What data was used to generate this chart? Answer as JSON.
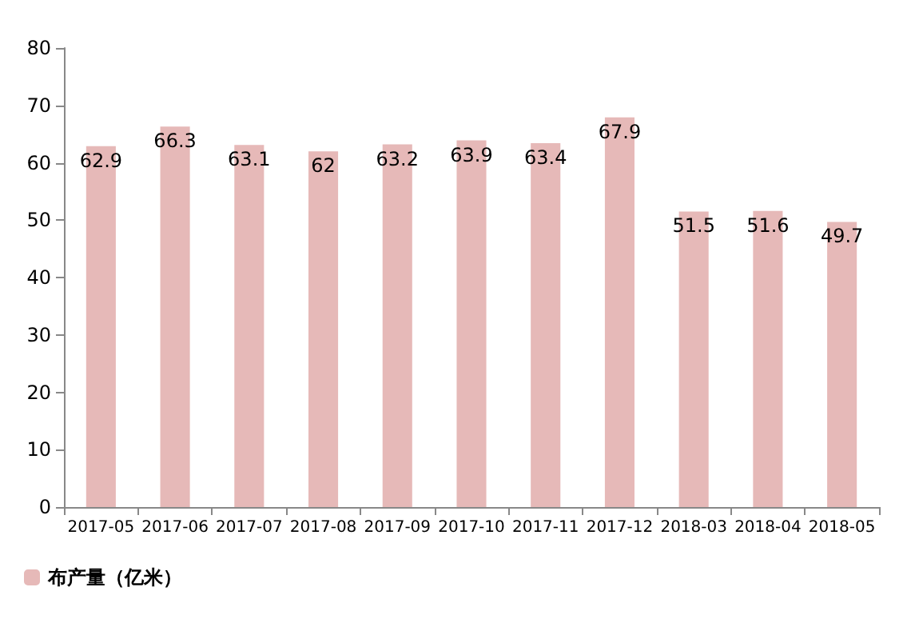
{
  "chart_data": {
    "type": "bar",
    "categories": [
      "2017-05",
      "2017-06",
      "2017-07",
      "2017-08",
      "2017-09",
      "2017-10",
      "2017-11",
      "2017-12",
      "2018-03",
      "2018-04",
      "2018-05"
    ],
    "series": [
      {
        "name": "布产量（亿米）",
        "color": "#e6b9b8",
        "values": [
          62.9,
          66.3,
          63.1,
          62,
          63.2,
          63.9,
          63.4,
          67.9,
          51.5,
          51.6,
          49.7
        ]
      }
    ],
    "ylim": [
      0,
      80
    ],
    "yticks": [
      0,
      10,
      20,
      30,
      40,
      50,
      60,
      70,
      80
    ],
    "grid": false,
    "legend": "bottom left",
    "data_labels": true
  }
}
